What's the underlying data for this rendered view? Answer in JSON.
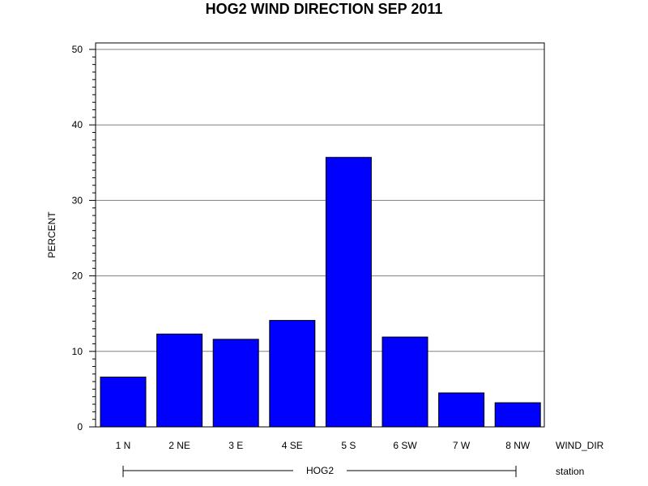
{
  "chart_data": {
    "type": "bar",
    "title": "HOG2 WIND DIRECTION SEP 2011",
    "ylabel": "PERCENT",
    "x_axis_name": "WIND_DIR",
    "group_axis_name": "station",
    "group_label": "HOG2",
    "categories": [
      "1 N",
      "2 NE",
      "3 E",
      "4 SE",
      "5 S",
      "6 SW",
      "7 W",
      "8 NW"
    ],
    "values": [
      6.6,
      12.3,
      11.6,
      14.1,
      35.7,
      11.9,
      4.5,
      3.2
    ],
    "ylim": [
      0,
      50
    ],
    "yticks": [
      "0",
      "10",
      "20",
      "30",
      "40",
      "50"
    ],
    "grid": true,
    "colors": {
      "bar_fill": "#0000ff",
      "bar_stroke": "#000000",
      "grid": "#808080"
    }
  }
}
